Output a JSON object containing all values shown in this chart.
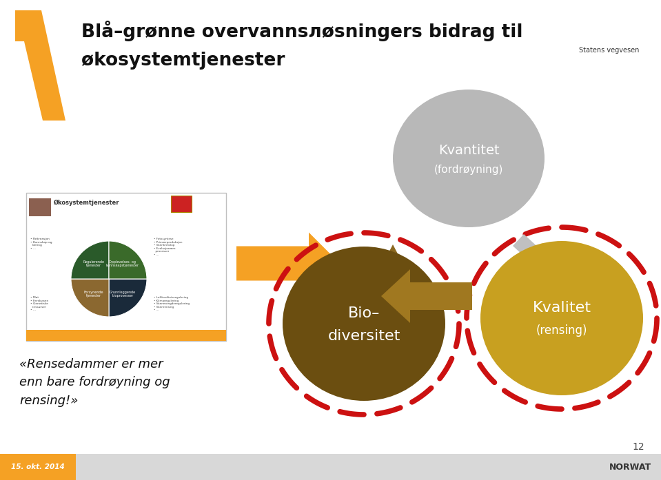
{
  "bg_color": "#ffffff",
  "footer_bg": "#d8d8d8",
  "orange": "#f5a124",
  "dark_brown": "#6b4e10",
  "golden": "#c8a020",
  "gray_circle": "#b8b8b8",
  "red_dash": "#cc1111",
  "brown_arrow": "#a07820",
  "gray_arrow": "#b0b0b0",
  "text_dark": "#111111",
  "text_gray": "#666666",
  "text_white": "#ffffff",
  "title1": "Blå–grønne overvannsлøsningers bidrag til",
  "title2": "økosystemtjenester",
  "kvantitet": "Kvantitet",
  "kvantitet_sub": "(fordrøyning)",
  "bio1": "Bio–",
  "bio2": "diversitet",
  "kvalitet": "Kvalitet",
  "kvalitet_sub": "(rensing)",
  "quote": "«Rensedammer er mer\nenn bare fordrøyning og\nrensing!»",
  "footer_date": "15. okt. 2014",
  "footer_right": "NORWAT",
  "page_num": "12"
}
